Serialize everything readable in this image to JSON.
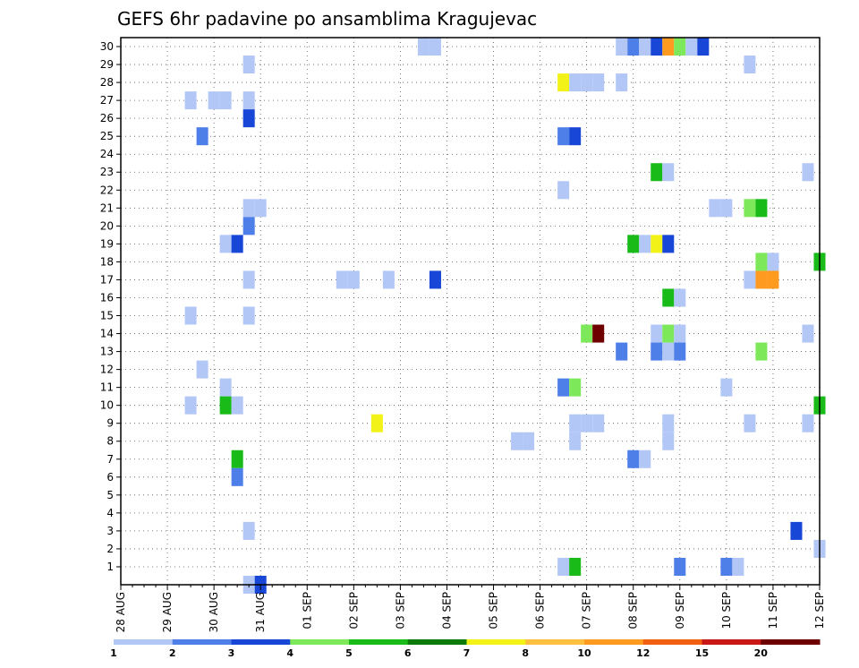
{
  "chart_data": {
    "type": "heatmap",
    "title": "GEFS 6hr padavine po ansamblima Kragujevac",
    "xlabel": "",
    "ylabel": "",
    "x_ticks": [
      "28 AUG",
      "29 AUG",
      "30 AUG",
      "31 AUG",
      "01 SEP",
      "02 SEP",
      "03 SEP",
      "04 SEP",
      "05 SEP",
      "06 SEP",
      "07 SEP",
      "08 SEP",
      "09 SEP",
      "10 SEP",
      "11 SEP",
      "12 SEP"
    ],
    "y_ticks": [
      "1",
      "2",
      "3",
      "4",
      "5",
      "6",
      "7",
      "8",
      "9",
      "10",
      "11",
      "12",
      "13",
      "14",
      "15",
      "16",
      "17",
      "18",
      "19",
      "20",
      "21",
      "22",
      "23",
      "24",
      "25",
      "26",
      "27",
      "28",
      "29",
      "30"
    ],
    "xlim_steps": [
      0,
      60
    ],
    "ylim": [
      0,
      30
    ],
    "grid": true,
    "legend_placement": "bottom",
    "legend_labels": [
      "1",
      "2",
      "3",
      "4",
      "5",
      "6",
      "7",
      "8",
      "10",
      "12",
      "15",
      "20"
    ],
    "legend_colors": [
      "#b3c7f7",
      "#4e7ee8",
      "#1846d6",
      "#7de85a",
      "#18bb18",
      "#0a7a0a",
      "#f2f218",
      "#ffc040",
      "#ff9a20",
      "#f06010",
      "#c81818",
      "#6e0000"
    ],
    "cells": [
      {
        "step": 11,
        "member": 0,
        "level": 0
      },
      {
        "step": 12,
        "member": 0,
        "level": 2
      },
      {
        "step": 26,
        "member": 30,
        "level": 0
      },
      {
        "step": 27,
        "member": 30,
        "level": 0
      },
      {
        "step": 43,
        "member": 30,
        "level": 0
      },
      {
        "step": 44,
        "member": 30,
        "level": 1
      },
      {
        "step": 45,
        "member": 30,
        "level": 0
      },
      {
        "step": 46,
        "member": 30,
        "level": 2
      },
      {
        "step": 47,
        "member": 30,
        "level": 8
      },
      {
        "step": 48,
        "member": 30,
        "level": 3
      },
      {
        "step": 49,
        "member": 30,
        "level": 0
      },
      {
        "step": 50,
        "member": 30,
        "level": 2
      },
      {
        "step": 11,
        "member": 29,
        "level": 0
      },
      {
        "step": 54,
        "member": 29,
        "level": 0
      },
      {
        "step": 38,
        "member": 28,
        "level": 6
      },
      {
        "step": 39,
        "member": 28,
        "level": 0
      },
      {
        "step": 40,
        "member": 28,
        "level": 0
      },
      {
        "step": 41,
        "member": 28,
        "level": 0
      },
      {
        "step": 43,
        "member": 28,
        "level": 0
      },
      {
        "step": 6,
        "member": 27,
        "level": 0
      },
      {
        "step": 8,
        "member": 27,
        "level": 0
      },
      {
        "step": 9,
        "member": 27,
        "level": 0
      },
      {
        "step": 11,
        "member": 27,
        "level": 0
      },
      {
        "step": 11,
        "member": 26,
        "level": 2
      },
      {
        "step": 7,
        "member": 25,
        "level": 1
      },
      {
        "step": 38,
        "member": 25,
        "level": 1
      },
      {
        "step": 39,
        "member": 25,
        "level": 2
      },
      {
        "step": 46,
        "member": 23,
        "level": 4
      },
      {
        "step": 47,
        "member": 23,
        "level": 0
      },
      {
        "step": 59,
        "member": 23,
        "level": 0
      },
      {
        "step": 38,
        "member": 22,
        "level": 0
      },
      {
        "step": 11,
        "member": 21,
        "level": 0
      },
      {
        "step": 12,
        "member": 21,
        "level": 0
      },
      {
        "step": 51,
        "member": 21,
        "level": 0
      },
      {
        "step": 52,
        "member": 21,
        "level": 0
      },
      {
        "step": 54,
        "member": 21,
        "level": 3
      },
      {
        "step": 55,
        "member": 21,
        "level": 4
      },
      {
        "step": 11,
        "member": 20,
        "level": 1
      },
      {
        "step": 9,
        "member": 19,
        "level": 0
      },
      {
        "step": 10,
        "member": 19,
        "level": 2
      },
      {
        "step": 44,
        "member": 19,
        "level": 4
      },
      {
        "step": 45,
        "member": 19,
        "level": 0
      },
      {
        "step": 46,
        "member": 19,
        "level": 6
      },
      {
        "step": 47,
        "member": 19,
        "level": 2
      },
      {
        "step": 55,
        "member": 18,
        "level": 3
      },
      {
        "step": 56,
        "member": 18,
        "level": 0
      },
      {
        "step": 60,
        "member": 18,
        "level": 4
      },
      {
        "step": 11,
        "member": 17,
        "level": 0
      },
      {
        "step": 19,
        "member": 17,
        "level": 0
      },
      {
        "step": 20,
        "member": 17,
        "level": 0
      },
      {
        "step": 23,
        "member": 17,
        "level": 0
      },
      {
        "step": 27,
        "member": 17,
        "level": 2
      },
      {
        "step": 54,
        "member": 17,
        "level": 0
      },
      {
        "step": 55,
        "member": 17,
        "level": 8
      },
      {
        "step": 56,
        "member": 17,
        "level": 8
      },
      {
        "step": 47,
        "member": 16,
        "level": 4
      },
      {
        "step": 48,
        "member": 16,
        "level": 0
      },
      {
        "step": 6,
        "member": 15,
        "level": 0
      },
      {
        "step": 11,
        "member": 15,
        "level": 0
      },
      {
        "step": 40,
        "member": 14,
        "level": 3
      },
      {
        "step": 41,
        "member": 14,
        "level": 11
      },
      {
        "step": 46,
        "member": 14,
        "level": 0
      },
      {
        "step": 47,
        "member": 14,
        "level": 3
      },
      {
        "step": 48,
        "member": 14,
        "level": 0
      },
      {
        "step": 59,
        "member": 14,
        "level": 0
      },
      {
        "step": 43,
        "member": 13,
        "level": 1
      },
      {
        "step": 46,
        "member": 13,
        "level": 1
      },
      {
        "step": 47,
        "member": 13,
        "level": 0
      },
      {
        "step": 48,
        "member": 13,
        "level": 1
      },
      {
        "step": 55,
        "member": 13,
        "level": 3
      },
      {
        "step": 7,
        "member": 12,
        "level": 0
      },
      {
        "step": 9,
        "member": 11,
        "level": 0
      },
      {
        "step": 38,
        "member": 11,
        "level": 1
      },
      {
        "step": 39,
        "member": 11,
        "level": 3
      },
      {
        "step": 52,
        "member": 11,
        "level": 0
      },
      {
        "step": 6,
        "member": 10,
        "level": 0
      },
      {
        "step": 9,
        "member": 10,
        "level": 4
      },
      {
        "step": 10,
        "member": 10,
        "level": 0
      },
      {
        "step": 60,
        "member": 10,
        "level": 4
      },
      {
        "step": 22,
        "member": 9,
        "level": 6
      },
      {
        "step": 39,
        "member": 9,
        "level": 0
      },
      {
        "step": 40,
        "member": 9,
        "level": 0
      },
      {
        "step": 41,
        "member": 9,
        "level": 0
      },
      {
        "step": 47,
        "member": 9,
        "level": 0
      },
      {
        "step": 54,
        "member": 9,
        "level": 0
      },
      {
        "step": 59,
        "member": 9,
        "level": 0
      },
      {
        "step": 34,
        "member": 8,
        "level": 0
      },
      {
        "step": 35,
        "member": 8,
        "level": 0
      },
      {
        "step": 39,
        "member": 8,
        "level": 0
      },
      {
        "step": 47,
        "member": 8,
        "level": 0
      },
      {
        "step": 10,
        "member": 7,
        "level": 4
      },
      {
        "step": 44,
        "member": 7,
        "level": 1
      },
      {
        "step": 45,
        "member": 7,
        "level": 0
      },
      {
        "step": 10,
        "member": 6,
        "level": 1
      },
      {
        "step": 11,
        "member": 3,
        "level": 0
      },
      {
        "step": 58,
        "member": 3,
        "level": 2
      },
      {
        "step": 60,
        "member": 2,
        "level": 0
      },
      {
        "step": 38,
        "member": 1,
        "level": 0
      },
      {
        "step": 39,
        "member": 1,
        "level": 4
      },
      {
        "step": 48,
        "member": 1,
        "level": 1
      },
      {
        "step": 52,
        "member": 1,
        "level": 1
      },
      {
        "step": 53,
        "member": 1,
        "level": 0
      }
    ]
  }
}
